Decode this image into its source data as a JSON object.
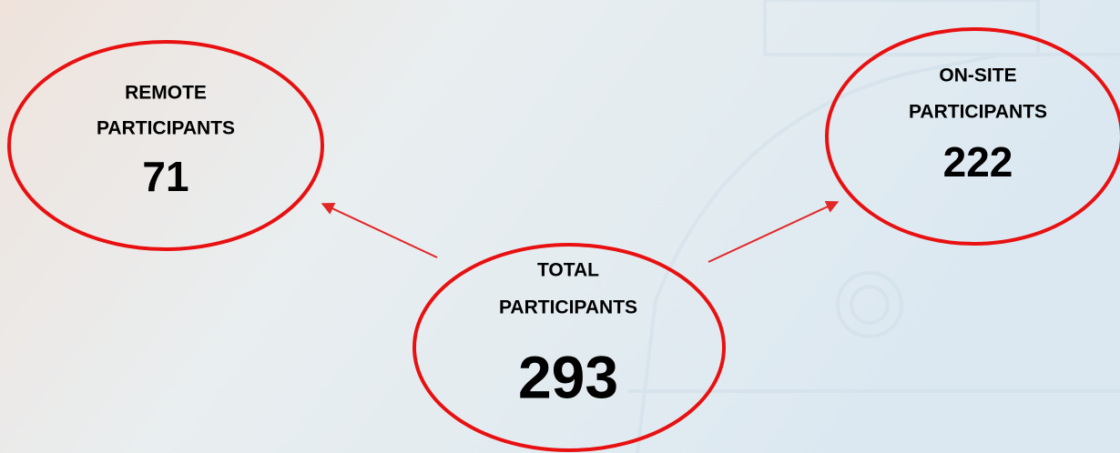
{
  "nodes": [
    {
      "label": [
        "REMOTE",
        "PARTICIPANTS"
      ],
      "value": 71
    },
    {
      "label": [
        "ON-SITE",
        "PARTICIPANTS"
      ],
      "value": 222
    },
    {
      "label": [
        "TOTAL",
        "PARTICIPANTS"
      ],
      "value": 293
    }
  ]
}
